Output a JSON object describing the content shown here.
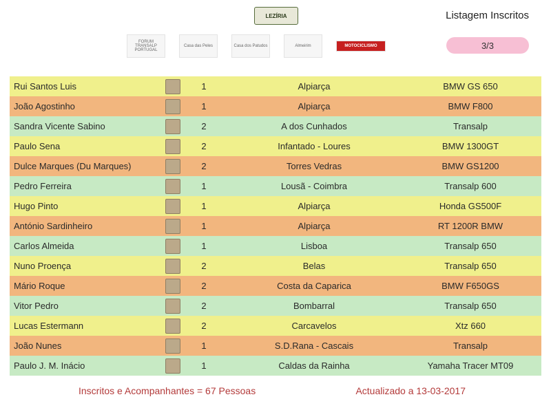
{
  "header": {
    "main_logo_text": "LEZÍRIA",
    "title": "Listagem Inscritos",
    "page_indicator": "3/3",
    "sponsors": [
      {
        "label": "FORUM TRANSALP PORTUGAL"
      },
      {
        "label": "Casa das Peles"
      },
      {
        "label": "Casa dos Patudos"
      },
      {
        "label": "Almeirim"
      },
      {
        "label": "MOTOCICLISMO",
        "style": "moto"
      }
    ]
  },
  "colors": {
    "yellow": "#f0f08c",
    "orange": "#f2b67e",
    "green": "#c7eac4",
    "badge_pink": "#f7bfd4",
    "footer_text": "#b33a3a"
  },
  "rows": [
    {
      "name": "Rui Santos Luis",
      "count": "1",
      "city": "Alpiarça",
      "bike": "BMW GS 650",
      "color": "yellow"
    },
    {
      "name": "João Agostinho",
      "count": "1",
      "city": "Alpiarça",
      "bike": "BMW F800",
      "color": "orange"
    },
    {
      "name": "Sandra Vicente Sabino",
      "count": "2",
      "city": "A dos Cunhados",
      "bike": "Transalp",
      "color": "green"
    },
    {
      "name": "Paulo Sena",
      "count": "2",
      "city": "Infantado - Loures",
      "bike": "BMW 1300GT",
      "color": "yellow"
    },
    {
      "name": "Dulce Marques (Du Marques)",
      "count": "2",
      "city": "Torres Vedras",
      "bike": "BMW GS1200",
      "color": "orange"
    },
    {
      "name": "Pedro Ferreira",
      "count": "1",
      "city": "Lousã - Coimbra",
      "bike": "Transalp 600",
      "color": "green"
    },
    {
      "name": "Hugo Pinto",
      "count": "1",
      "city": "Alpiarça",
      "bike": "Honda GS500F",
      "color": "yellow"
    },
    {
      "name": "António Sardinheiro",
      "count": "1",
      "city": "Alpiarça",
      "bike": "RT 1200R BMW",
      "color": "orange"
    },
    {
      "name": "Carlos Almeida",
      "count": "1",
      "city": "Lisboa",
      "bike": "Transalp 650",
      "color": "green"
    },
    {
      "name": "Nuno Proença",
      "count": "2",
      "city": "Belas",
      "bike": "Transalp 650",
      "color": "yellow"
    },
    {
      "name": "Mário Roque",
      "count": "2",
      "city": "Costa da Caparica",
      "bike": "BMW F650GS",
      "color": "orange"
    },
    {
      "name": "Vitor Pedro",
      "count": "2",
      "city": "Bombarral",
      "bike": "Transalp 650",
      "color": "green"
    },
    {
      "name": "Lucas Estermann",
      "count": "2",
      "city": "Carcavelos",
      "bike": "Xtz 660",
      "color": "yellow"
    },
    {
      "name": "João Nunes",
      "count": "1",
      "city": "S.D.Rana - Cascais",
      "bike": "Transalp",
      "color": "orange"
    },
    {
      "name": "Paulo J. M. Inácio",
      "count": "1",
      "city": "Caldas da Rainha",
      "bike": "Yamaha Tracer MT09",
      "color": "green"
    }
  ],
  "footer": {
    "left": "Inscritos e Acompanhantes = 67 Pessoas",
    "right": "Actualizado a 13-03-2017"
  }
}
